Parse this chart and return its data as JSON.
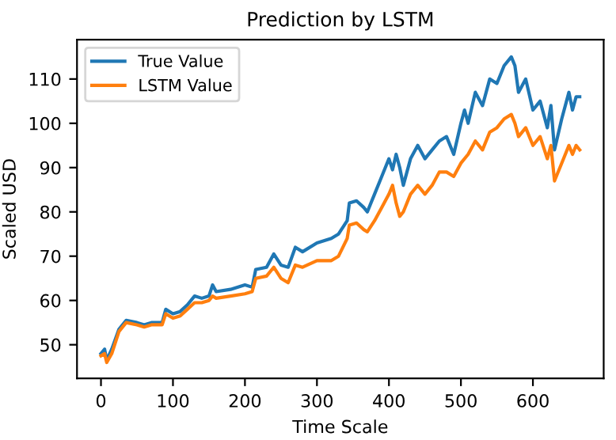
{
  "chart_data": {
    "type": "line",
    "title": "Prediction by LSTM",
    "xlabel": "Time Scale",
    "ylabel": "Scaled USD",
    "xlim": [
      -33.3,
      698.3
    ],
    "ylim": [
      42.4,
      118.9
    ],
    "xticks": [
      0,
      100,
      200,
      300,
      400,
      500,
      600
    ],
    "yticks": [
      50,
      60,
      70,
      80,
      90,
      100,
      110
    ],
    "legend": "top left",
    "grid": false,
    "series": [
      {
        "name": "True Value",
        "color": "#1f77b4",
        "x": [
          0,
          5,
          8,
          15,
          25,
          35,
          50,
          60,
          70,
          85,
          90,
          100,
          110,
          120,
          130,
          140,
          150,
          155,
          160,
          180,
          200,
          210,
          215,
          230,
          240,
          250,
          260,
          270,
          280,
          300,
          320,
          330,
          342,
          345,
          355,
          365,
          370,
          380,
          390,
          400,
          405,
          410,
          415,
          420,
          430,
          440,
          450,
          460,
          470,
          480,
          490,
          500,
          505,
          510,
          520,
          530,
          540,
          550,
          560,
          570,
          575,
          580,
          590,
          600,
          610,
          620,
          625,
          630,
          640,
          650,
          655,
          660,
          665
        ],
        "values": [
          48,
          49,
          46.5,
          49,
          53.5,
          55.5,
          55,
          54.5,
          55,
          55,
          58,
          57,
          57.5,
          59,
          61,
          60.5,
          61,
          63.5,
          62,
          62.5,
          63.5,
          63,
          67,
          67.5,
          70.5,
          68,
          67.5,
          72,
          71,
          73,
          74,
          75,
          78,
          82,
          82.5,
          81,
          80,
          84,
          88,
          92,
          89.5,
          93,
          90,
          86,
          92,
          95,
          92,
          94,
          96,
          97,
          93,
          100,
          103,
          100,
          107,
          104,
          110,
          109,
          113,
          115,
          113,
          107,
          110,
          103,
          105,
          99,
          104,
          94,
          101,
          107,
          103,
          106,
          106
        ]
      },
      {
        "name": "LSTM Value",
        "color": "#ff7f0e",
        "x": [
          0,
          5,
          8,
          15,
          25,
          35,
          50,
          60,
          70,
          85,
          90,
          100,
          110,
          120,
          130,
          140,
          150,
          155,
          160,
          180,
          200,
          210,
          215,
          230,
          240,
          250,
          260,
          270,
          280,
          300,
          320,
          330,
          342,
          345,
          355,
          365,
          370,
          380,
          390,
          400,
          405,
          410,
          415,
          420,
          430,
          440,
          450,
          460,
          470,
          480,
          490,
          500,
          510,
          520,
          530,
          540,
          550,
          560,
          570,
          575,
          580,
          590,
          600,
          610,
          620,
          625,
          630,
          640,
          650,
          655,
          660,
          665
        ],
        "values": [
          47.5,
          48,
          46,
          48,
          53,
          55,
          54.5,
          54,
          54.5,
          54.5,
          57,
          56,
          56.5,
          58,
          59.5,
          59.5,
          60,
          61,
          60.5,
          61,
          61.5,
          62,
          65,
          65.5,
          67.5,
          65,
          64,
          68,
          67.5,
          69,
          69,
          70,
          74,
          77,
          77.5,
          76,
          75.5,
          78,
          81,
          84,
          86,
          82,
          79,
          80,
          84,
          86,
          84,
          86,
          89,
          89,
          88,
          91,
          93,
          96,
          94,
          98,
          99,
          101,
          102,
          100,
          97,
          99,
          95,
          97,
          92,
          95,
          87,
          91,
          95,
          93,
          95,
          94
        ]
      }
    ]
  }
}
